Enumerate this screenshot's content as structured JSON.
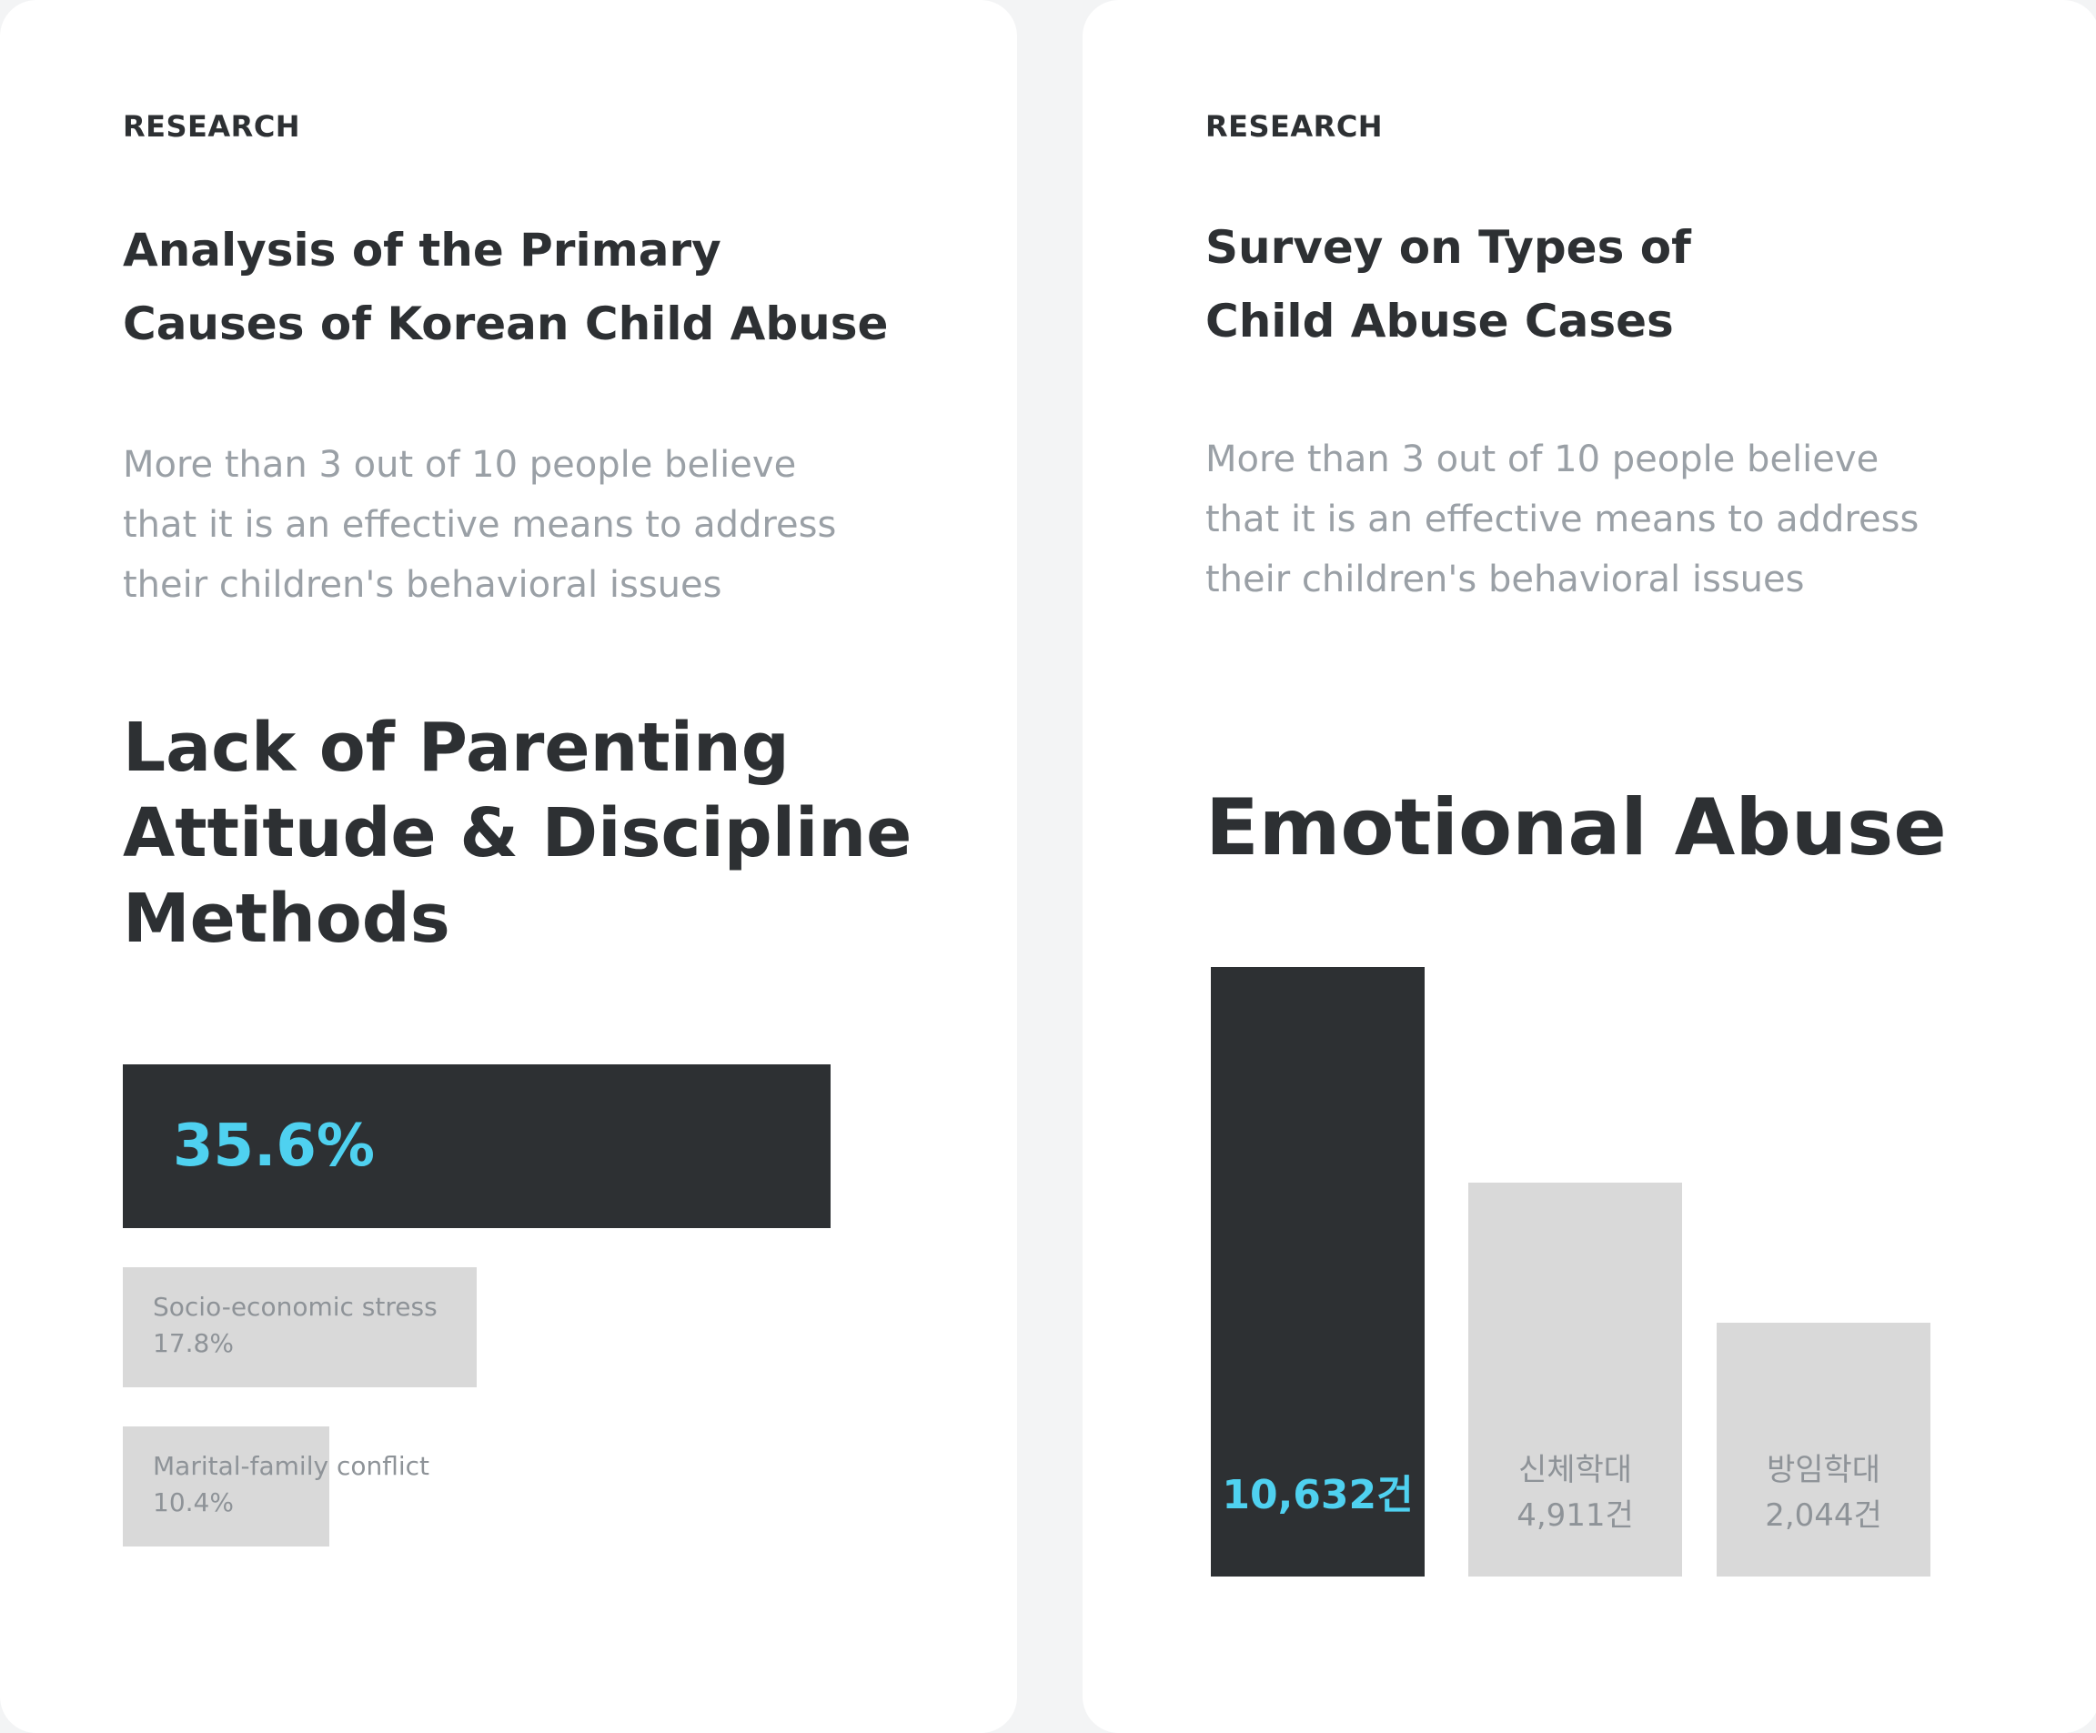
{
  "left_card": {
    "eyebrow": "RESEARCH",
    "title_lines": [
      "Analysis of the Primary",
      "Causes of Korean Child Abuse"
    ],
    "description_lines": [
      "More than 3 out of 10 people believe",
      "that it is an effective means to address",
      "their children's behavioral issues"
    ],
    "headline_lines": [
      "Lack of Parenting",
      "Attitude & Discipline",
      "Methods"
    ]
  },
  "right_card": {
    "eyebrow": "RESEARCH",
    "title_lines": [
      "Survey on Types of",
      "Child Abuse Cases"
    ],
    "description_lines": [
      "More than 3 out of 10 people believe",
      "that it is an effective means to address",
      "their children's behavioral issues"
    ],
    "headline": "Emotional Abuse"
  },
  "colors": {
    "dark": "#2d3033",
    "accent": "#4fd1f0",
    "muted_bar": "#d9d9d9",
    "muted_text": "#8e9398"
  },
  "chart_data": [
    {
      "type": "bar",
      "orientation": "horizontal",
      "categories": [
        "",
        "Socio-economic stress",
        "Marital-family conflict"
      ],
      "values": [
        35.6,
        17.8,
        10.4
      ],
      "value_labels": [
        "35.6%",
        "17.8%",
        "10.4%"
      ],
      "unit": "%"
    },
    {
      "type": "bar",
      "orientation": "vertical",
      "categories": [
        "",
        "신체학대",
        "방임학대"
      ],
      "values": [
        10632,
        4911,
        2044
      ],
      "value_labels": [
        "10,632건",
        "4,911건",
        "2,044건"
      ],
      "unit": "건"
    }
  ]
}
